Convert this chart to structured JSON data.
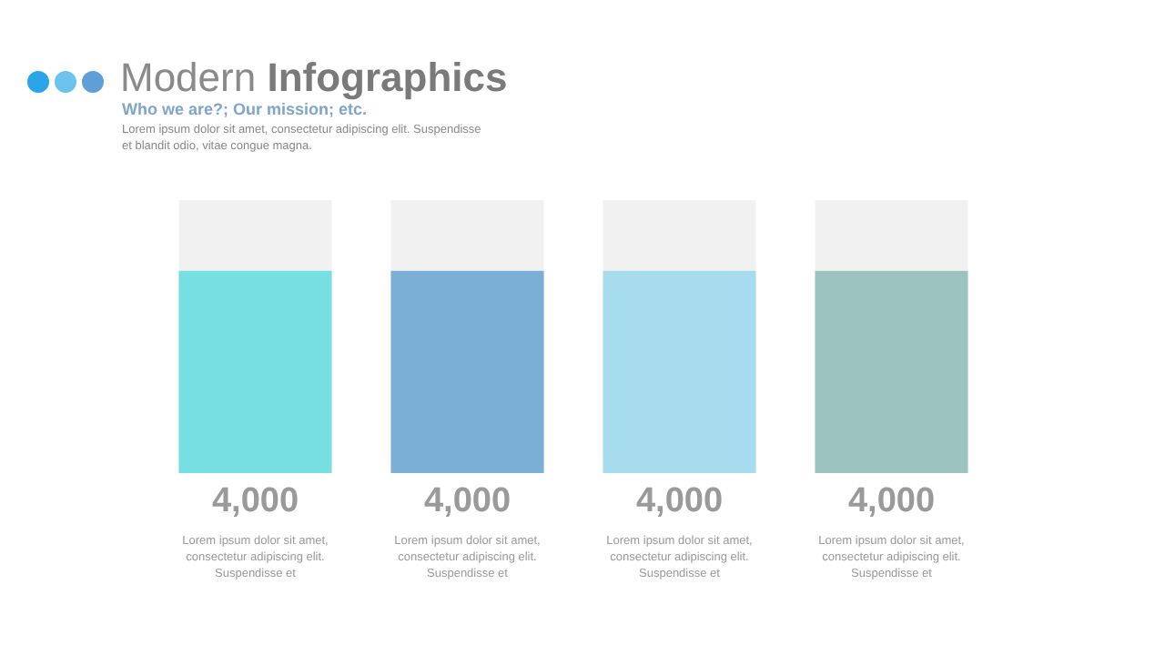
{
  "chart_data": {
    "type": "bar",
    "title": "Modern Infographics",
    "subtitle": "Who we are?; Our mission; etc.",
    "annotations": [
      "Lorem ipsum dolor sit amet, consectetur adipiscing elit. Suspendisse et blandit odio, vitae congue magna.",
      "Lorem ipsum dolor sit amet, consectetur adipiscing elit. Suspendisse et",
      "Lorem ipsum dolor sit amet, consectetur adipiscing elit. Suspendisse et",
      "Lorem ipsum dolor sit amet, consectetur adipiscing elit. Suspendisse et",
      "Lorem ipsum dolor sit amet, consectetur adipiscing elit. Suspendisse et"
    ],
    "categories": [
      null,
      null,
      null,
      null
    ],
    "values": [
      4000,
      4000,
      4000,
      4000
    ],
    "colors": [
      "#76dfe2",
      "#7bafd6",
      "#a6dcee",
      "#9cc3c0"
    ],
    "value_labels": [
      "4,000",
      "4,000",
      "4,000",
      "4,000"
    ],
    "ylim": [
      0,
      5400
    ],
    "tick_labels": false
  }
}
